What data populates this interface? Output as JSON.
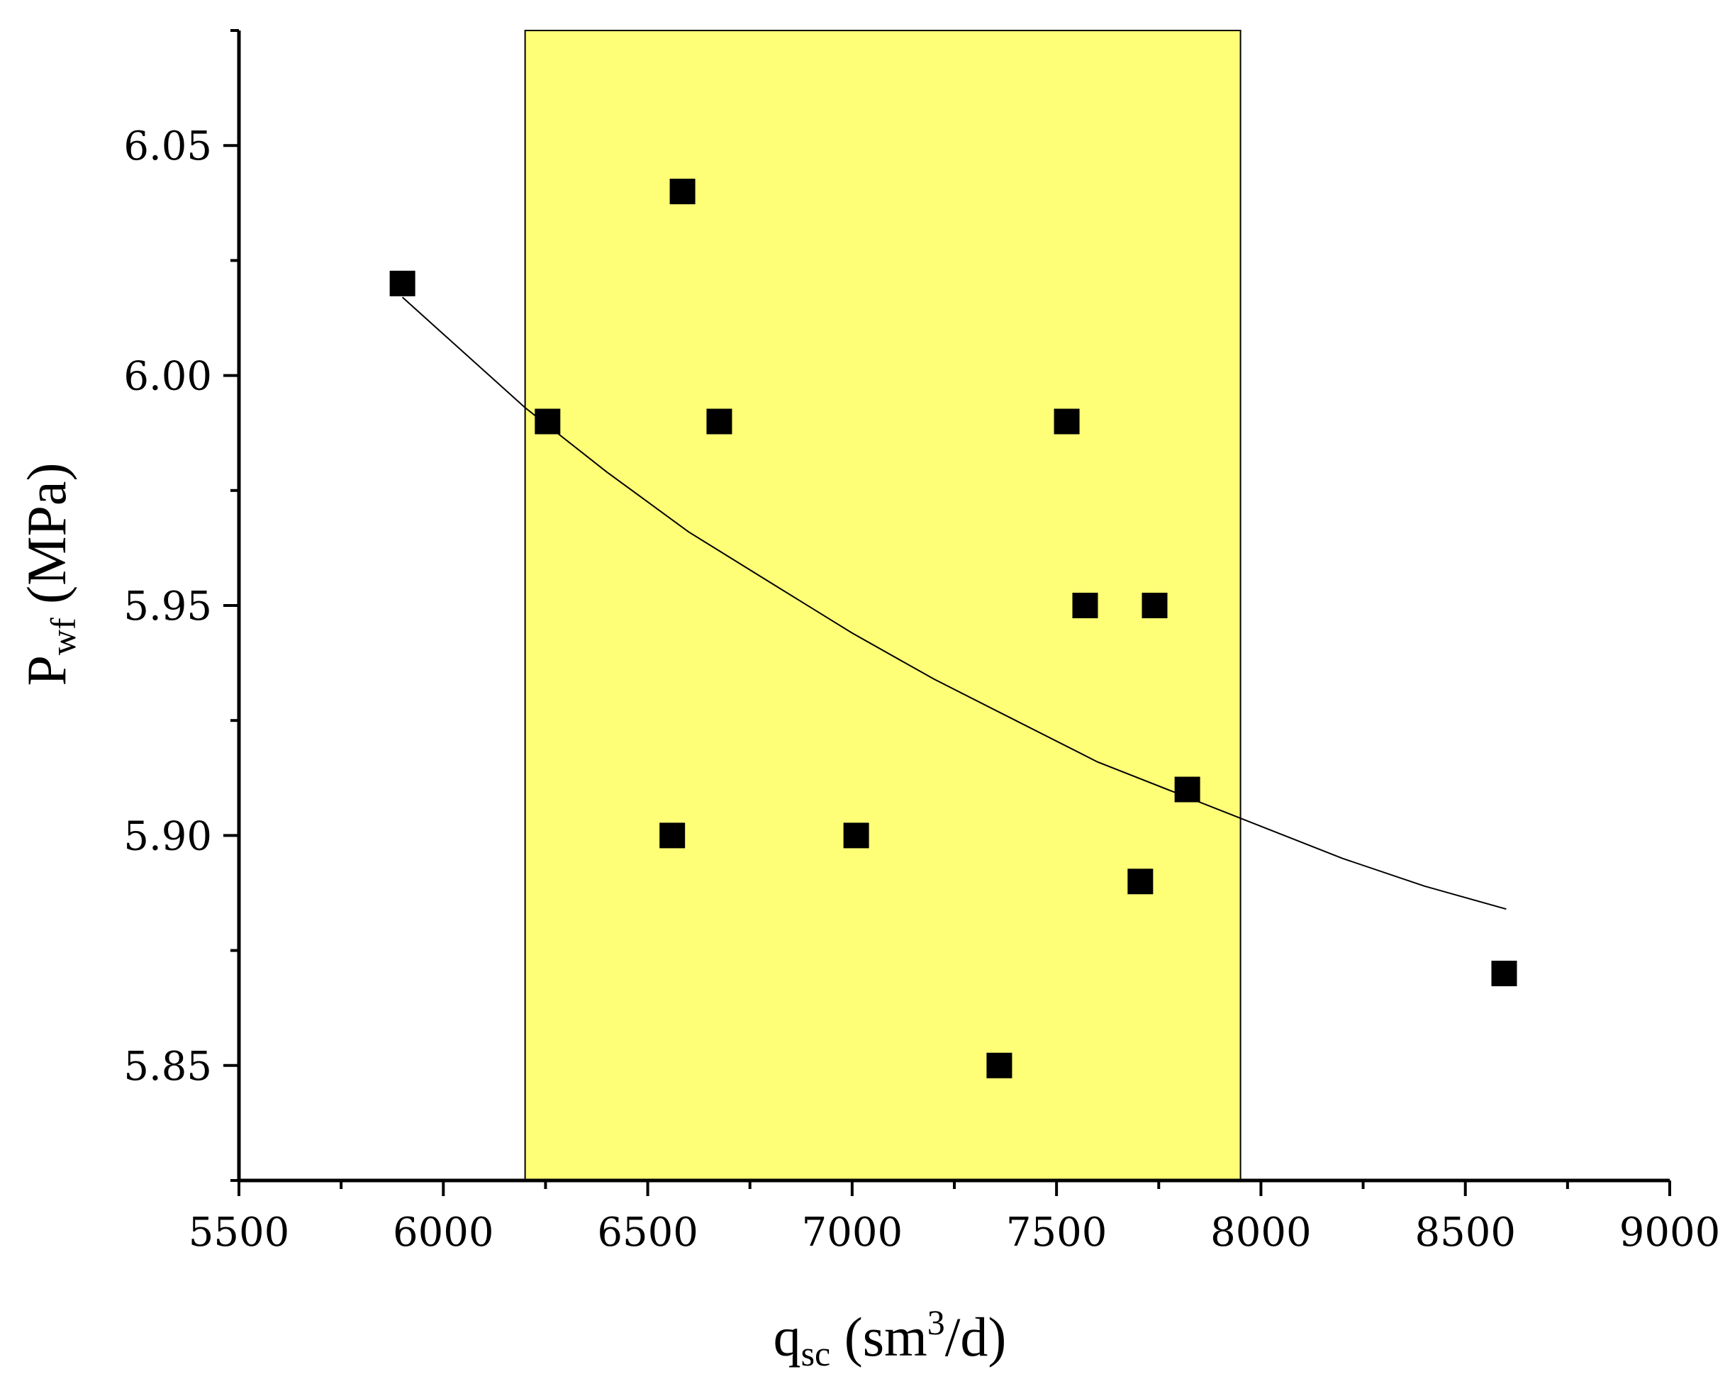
{
  "chart_data": {
    "type": "scatter",
    "xlabel": {
      "main": "q",
      "sub": "sc",
      "unit_prefix": " (sm",
      "unit_sup": "3",
      "unit_suffix": "/d)"
    },
    "ylabel": {
      "main": "P",
      "sub": "wf",
      "unit": " (MPa)"
    },
    "xlim": [
      5500,
      9000
    ],
    "ylim": [
      5.825,
      6.075
    ],
    "x_ticks": [
      5500,
      6000,
      6500,
      7000,
      7500,
      8000,
      8500,
      9000
    ],
    "x_tick_labels": [
      "5500",
      "6000",
      "6500",
      "7000",
      "7500",
      "8000",
      "8500",
      "9000"
    ],
    "y_ticks": [
      5.85,
      5.9,
      5.95,
      6.0,
      6.05
    ],
    "y_tick_labels": [
      "5.85",
      "5.90",
      "5.95",
      "6.00",
      "6.05"
    ],
    "highlight_region": {
      "x_from": 6200,
      "x_to": 7950,
      "color": "#ffff77"
    },
    "series": [
      {
        "marker": "square",
        "color": "#000000",
        "points": [
          {
            "x": 5900,
            "y": 6.02
          },
          {
            "x": 6255,
            "y": 5.99
          },
          {
            "x": 6585,
            "y": 6.04
          },
          {
            "x": 6675,
            "y": 5.99
          },
          {
            "x": 6560,
            "y": 5.9
          },
          {
            "x": 7010,
            "y": 5.9
          },
          {
            "x": 7360,
            "y": 5.85
          },
          {
            "x": 7525,
            "y": 5.99
          },
          {
            "x": 7570,
            "y": 5.95
          },
          {
            "x": 7740,
            "y": 5.95
          },
          {
            "x": 7705,
            "y": 5.89
          },
          {
            "x": 7820,
            "y": 5.91
          },
          {
            "x": 8595,
            "y": 5.87
          }
        ]
      }
    ],
    "fit_curve": {
      "color": "#000000",
      "points": [
        {
          "x": 5900,
          "y": 6.017
        },
        {
          "x": 6000,
          "y": 6.009
        },
        {
          "x": 6200,
          "y": 5.993
        },
        {
          "x": 6400,
          "y": 5.979
        },
        {
          "x": 6600,
          "y": 5.966
        },
        {
          "x": 6800,
          "y": 5.955
        },
        {
          "x": 7000,
          "y": 5.944
        },
        {
          "x": 7200,
          "y": 5.934
        },
        {
          "x": 7400,
          "y": 5.925
        },
        {
          "x": 7600,
          "y": 5.916
        },
        {
          "x": 7800,
          "y": 5.909
        },
        {
          "x": 8000,
          "y": 5.902
        },
        {
          "x": 8200,
          "y": 5.895
        },
        {
          "x": 8400,
          "y": 5.889
        },
        {
          "x": 8600,
          "y": 5.884
        }
      ]
    }
  }
}
